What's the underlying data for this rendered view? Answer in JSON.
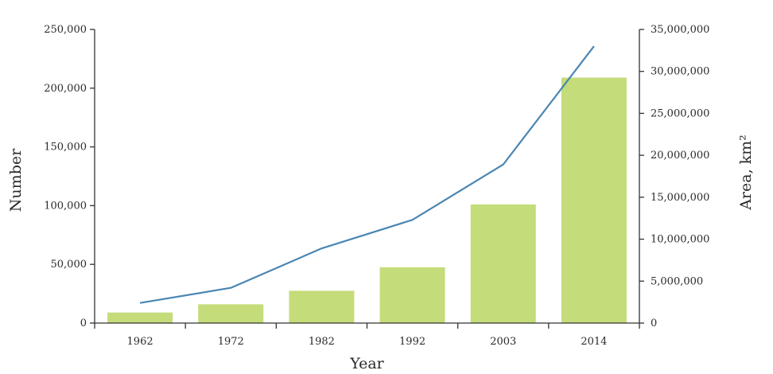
{
  "chart_data": {
    "type": "bar",
    "categories": [
      "1962",
      "1972",
      "1982",
      "1992",
      "2003",
      "2014"
    ],
    "series": [
      {
        "type": "bar",
        "axis": "left",
        "color": "#c5dc7a",
        "values": [
          9000,
          16000,
          27500,
          47500,
          101000,
          209000
        ]
      },
      {
        "type": "line",
        "axis": "right",
        "color": "#4a86b3",
        "values": [
          2400000,
          4200000,
          8900000,
          12300000,
          18900000,
          33000000
        ]
      }
    ],
    "xlabel": "Year",
    "ylabel": "Number",
    "y2label": "Area, km²",
    "ylim": [
      0,
      250000
    ],
    "y2lim": [
      0,
      35000000
    ],
    "yticks": [
      0,
      50000,
      100000,
      150000,
      200000,
      250000
    ],
    "yticklabels": [
      "0",
      "50,000",
      "100,000",
      "150,000",
      "200,000",
      "250,000"
    ],
    "y2ticks": [
      0,
      5000000,
      10000000,
      15000000,
      20000000,
      25000000,
      30000000,
      35000000
    ],
    "y2ticklabels": [
      "0",
      "5,000,000",
      "10,000,000",
      "15,000,000",
      "20,000,000",
      "25,000,000",
      "30,000,000",
      "35,000,000"
    ],
    "grid": false,
    "legend": "none"
  }
}
